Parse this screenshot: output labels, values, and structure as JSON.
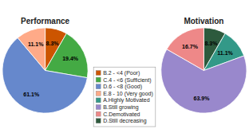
{
  "chart_data": [
    {
      "type": "pie",
      "title": "Performance",
      "categories": [
        "B.2 - <4 (Poor)",
        "C.4 - <6 (Sufficient)",
        "D.6 - <8 (Good)",
        "E.8 - 10 (Very good)"
      ],
      "values": [
        8.3,
        19.4,
        61.1,
        11.1
      ],
      "value_labels": [
        "8.3%",
        "19.4%",
        "61.1%",
        "11.1%"
      ],
      "colors": [
        "#CC5500",
        "#44AA44",
        "#6688CC",
        "#FFAA88"
      ],
      "data_labels": true,
      "legend": "bottom"
    },
    {
      "type": "pie",
      "title": "Motivation",
      "categories": [
        "D.Still decreasing",
        "A.Highly Motivated",
        "B.Still growing",
        "C.Demotivated"
      ],
      "values": [
        8.3,
        11.1,
        63.9,
        16.7
      ],
      "value_labels": [
        "8.3%",
        "11.1%",
        "63.9%",
        "16.7%"
      ],
      "colors": [
        "#2D5A3D",
        "#339988",
        "#9988CC",
        "#EE8888"
      ],
      "data_labels": true,
      "legend": "bottom"
    }
  ]
}
